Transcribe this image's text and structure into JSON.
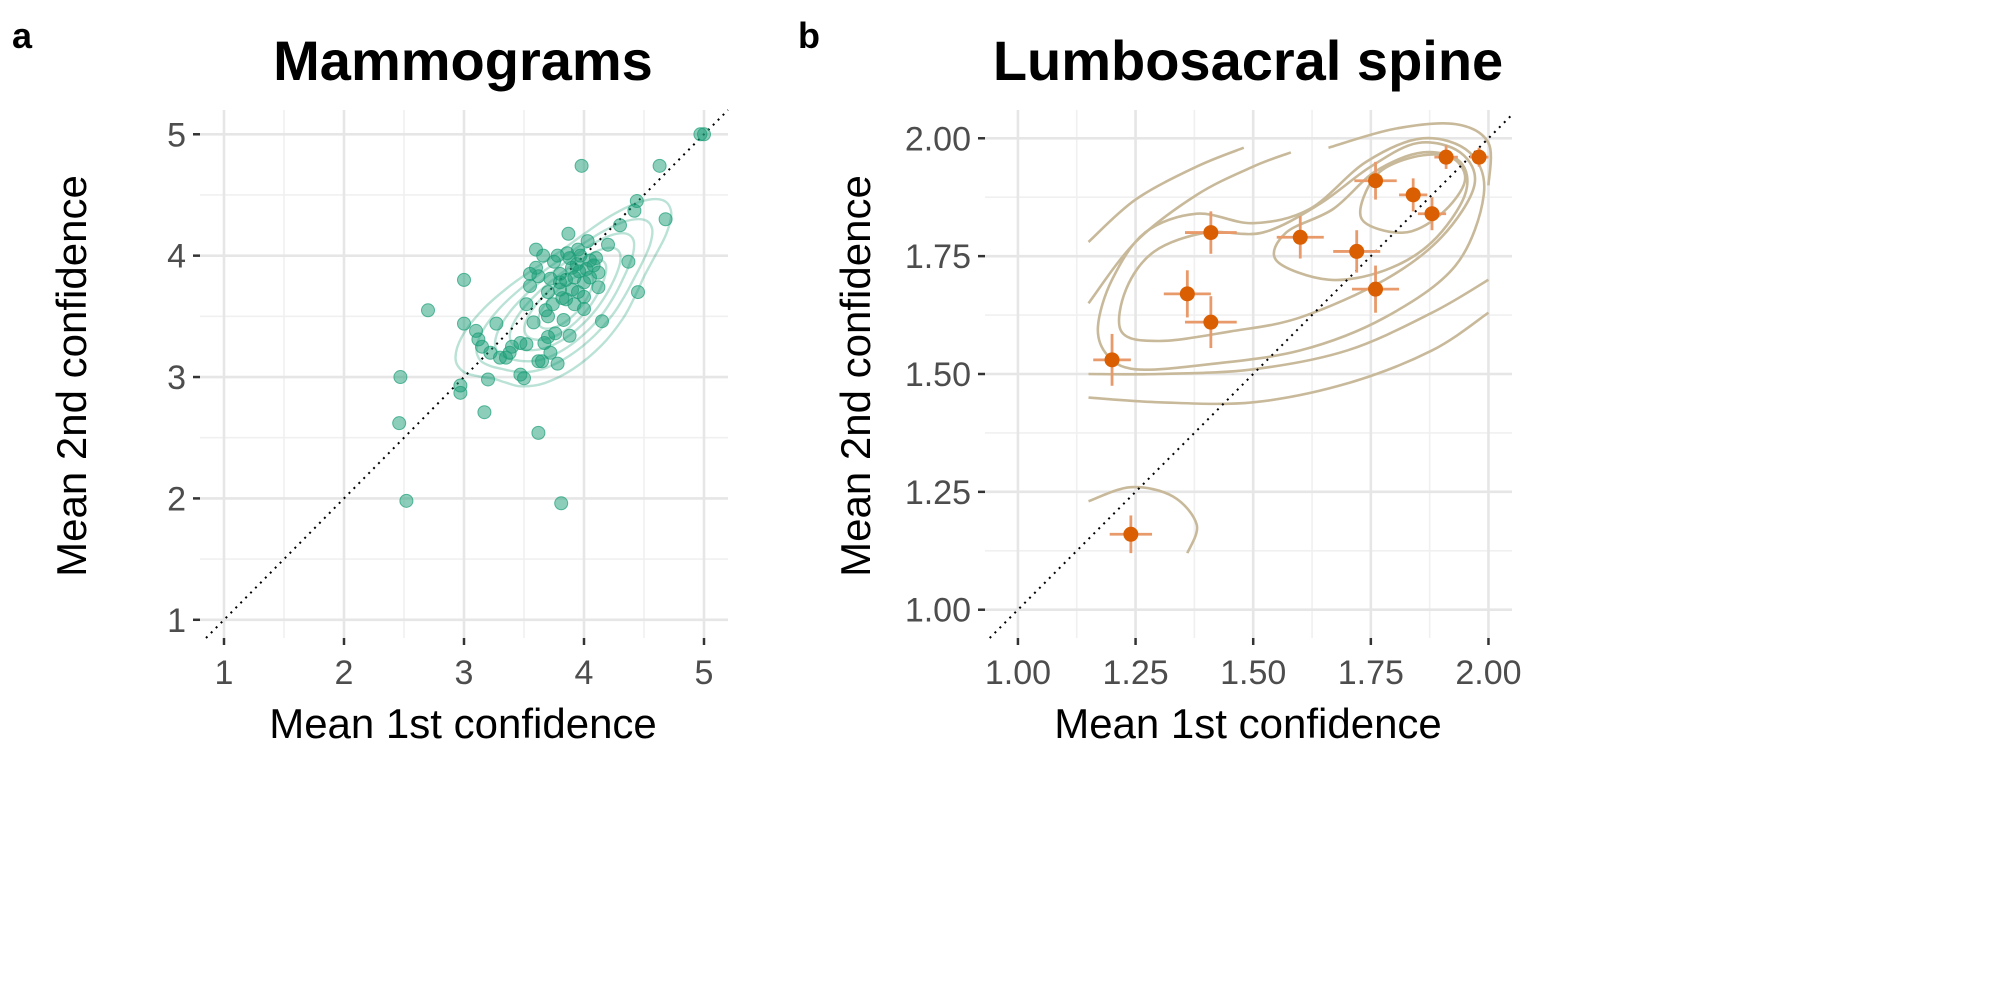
{
  "colors": {
    "panel_a_points": "#1b9e77",
    "panel_b_points": "#d95f02",
    "panel_b_errorbars": "#e89a6b",
    "panel_b_contours": "#c8b99a",
    "grid": "#e6e6e6",
    "background": "#ffffff"
  },
  "chart_data": [
    {
      "panel_letter": "a",
      "type": "scatter",
      "title": "Mammograms",
      "xlabel": "Mean 1st confidence",
      "ylabel": "Mean 2nd confidence",
      "xlim": [
        0.8,
        5.2
      ],
      "ylim": [
        0.85,
        5.2
      ],
      "x_ticks": [
        1,
        2,
        3,
        4,
        5
      ],
      "y_ticks": [
        1,
        2,
        3,
        4,
        5
      ],
      "x_tick_labels": [
        "1",
        "2",
        "3",
        "4",
        "5"
      ],
      "y_tick_labels": [
        "1",
        "2",
        "3",
        "4",
        "5"
      ],
      "grid": true,
      "identity_line": true,
      "density_contours": true,
      "points": [
        [
          2.47,
          3.0
        ],
        [
          2.46,
          2.62
        ],
        [
          2.52,
          1.98
        ],
        [
          2.7,
          3.55
        ],
        [
          2.97,
          2.87
        ],
        [
          2.97,
          2.93
        ],
        [
          3.0,
          3.8
        ],
        [
          3.0,
          3.44
        ],
        [
          3.1,
          3.38
        ],
        [
          3.12,
          3.31
        ],
        [
          3.15,
          3.25
        ],
        [
          3.17,
          2.71
        ],
        [
          3.2,
          2.98
        ],
        [
          3.22,
          3.2
        ],
        [
          3.27,
          3.44
        ],
        [
          3.3,
          3.16
        ],
        [
          3.35,
          3.16
        ],
        [
          3.38,
          3.2
        ],
        [
          3.47,
          3.02
        ],
        [
          3.5,
          2.99
        ],
        [
          3.47,
          3.28
        ],
        [
          3.52,
          3.27
        ],
        [
          3.52,
          3.6
        ],
        [
          3.55,
          3.85
        ],
        [
          3.6,
          4.05
        ],
        [
          3.58,
          3.45
        ],
        [
          3.62,
          3.83
        ],
        [
          3.62,
          3.13
        ],
        [
          3.62,
          2.54
        ],
        [
          3.65,
          3.13
        ],
        [
          3.67,
          3.28
        ],
        [
          3.7,
          3.33
        ],
        [
          3.7,
          3.5
        ],
        [
          3.7,
          3.7
        ],
        [
          3.72,
          3.81
        ],
        [
          3.74,
          3.6
        ],
        [
          3.76,
          3.36
        ],
        [
          3.78,
          3.11
        ],
        [
          3.8,
          3.85
        ],
        [
          3.78,
          4.0
        ],
        [
          3.8,
          3.72
        ],
        [
          3.81,
          1.96
        ],
        [
          3.83,
          3.47
        ],
        [
          3.85,
          3.8
        ],
        [
          3.85,
          3.64
        ],
        [
          3.87,
          4.18
        ],
        [
          3.88,
          3.34
        ],
        [
          3.9,
          3.9
        ],
        [
          3.9,
          3.72
        ],
        [
          3.92,
          3.6
        ],
        [
          3.94,
          3.93
        ],
        [
          3.96,
          3.87
        ],
        [
          3.97,
          4.0
        ],
        [
          3.98,
          4.74
        ],
        [
          4.0,
          3.56
        ],
        [
          4.0,
          3.78
        ],
        [
          4.02,
          3.89
        ],
        [
          4.03,
          4.12
        ],
        [
          4.05,
          3.96
        ],
        [
          4.08,
          3.92
        ],
        [
          4.1,
          3.98
        ],
        [
          4.12,
          3.74
        ],
        [
          4.12,
          3.86
        ],
        [
          4.15,
          3.46
        ],
        [
          4.2,
          4.09
        ],
        [
          4.3,
          4.25
        ],
        [
          4.37,
          3.95
        ],
        [
          4.42,
          4.37
        ],
        [
          4.44,
          4.45
        ],
        [
          4.45,
          3.7
        ],
        [
          4.63,
          4.74
        ],
        [
          4.68,
          4.3
        ],
        [
          4.97,
          5.0
        ],
        [
          5.0,
          5.0
        ],
        [
          3.55,
          3.75
        ],
        [
          3.6,
          3.9
        ],
        [
          3.68,
          3.55
        ],
        [
          3.75,
          3.95
        ],
        [
          3.82,
          3.65
        ],
        [
          3.86,
          4.02
        ],
        [
          3.92,
          3.82
        ],
        [
          3.95,
          3.7
        ],
        [
          4.05,
          3.82
        ],
        [
          3.72,
          3.2
        ],
        [
          3.4,
          3.25
        ],
        [
          3.66,
          4.0
        ],
        [
          3.95,
          4.05
        ],
        [
          3.88,
          3.98
        ],
        [
          4.0,
          3.66
        ],
        [
          3.8,
          3.78
        ]
      ]
    },
    {
      "panel_letter": "b",
      "type": "scatter",
      "title": "Lumbosacral spine",
      "xlabel": "Mean 1st confidence",
      "ylabel": "Mean 2nd confidence",
      "xlim": [
        0.93,
        2.05
      ],
      "ylim": [
        0.94,
        2.06
      ],
      "x_ticks": [
        1.0,
        1.25,
        1.5,
        1.75,
        2.0
      ],
      "y_ticks": [
        1.0,
        1.25,
        1.5,
        1.75,
        2.0
      ],
      "x_tick_labels": [
        "1.00",
        "1.25",
        "1.50",
        "1.75",
        "2.00"
      ],
      "y_tick_labels": [
        "1.00",
        "1.25",
        "1.50",
        "1.75",
        "2.00"
      ],
      "grid": true,
      "identity_line": true,
      "density_contours": true,
      "points": [
        {
          "x": 1.2,
          "y": 1.53,
          "xerr": 0.04,
          "yerr": 0.055
        },
        {
          "x": 1.24,
          "y": 1.16,
          "xerr": 0.045,
          "yerr": 0.04
        },
        {
          "x": 1.36,
          "y": 1.67,
          "xerr": 0.05,
          "yerr": 0.05
        },
        {
          "x": 1.41,
          "y": 1.8,
          "xerr": 0.055,
          "yerr": 0.045
        },
        {
          "x": 1.41,
          "y": 1.61,
          "xerr": 0.055,
          "yerr": 0.055
        },
        {
          "x": 1.6,
          "y": 1.79,
          "xerr": 0.05,
          "yerr": 0.045
        },
        {
          "x": 1.72,
          "y": 1.76,
          "xerr": 0.05,
          "yerr": 0.045
        },
        {
          "x": 1.76,
          "y": 1.91,
          "xerr": 0.045,
          "yerr": 0.04
        },
        {
          "x": 1.76,
          "y": 1.68,
          "xerr": 0.05,
          "yerr": 0.05
        },
        {
          "x": 1.84,
          "y": 1.88,
          "xerr": 0.03,
          "yerr": 0.035
        },
        {
          "x": 1.88,
          "y": 1.84,
          "xerr": 0.03,
          "yerr": 0.035
        },
        {
          "x": 1.91,
          "y": 1.96,
          "xerr": 0.025,
          "yerr": 0.025
        },
        {
          "x": 1.98,
          "y": 1.96,
          "xerr": 0.02,
          "yerr": 0.02
        }
      ]
    }
  ]
}
